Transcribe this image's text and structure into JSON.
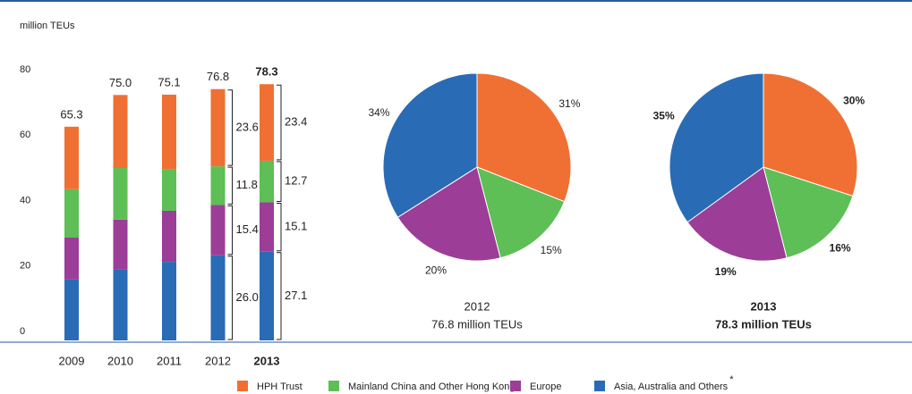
{
  "chart_data": [
    {
      "type": "stacked-bar",
      "yaxis_label": "million TEUs",
      "categories": [
        "2009",
        "2010",
        "2011",
        "2012",
        "2013"
      ],
      "emphasis": "2013",
      "series": [
        {
          "name": "HPH Trust",
          "color": "#f07033",
          "values": [
            19.1,
            22.3,
            22.9,
            23.6,
            23.4
          ],
          "value_labels": [
            null,
            null,
            null,
            "23.6",
            "23.4"
          ]
        },
        {
          "name": "Mainland China and Other Hong Kong",
          "color": "#5dbf55",
          "values": [
            14.8,
            15.8,
            12.6,
            11.8,
            12.7
          ],
          "value_labels": [
            null,
            null,
            null,
            "11.8",
            "12.7"
          ]
        },
        {
          "name": "Europe",
          "color": "#9c3d97",
          "values": [
            12.8,
            15.3,
            15.6,
            15.4,
            15.1
          ],
          "value_labels": [
            null,
            null,
            null,
            "15.4",
            "15.1"
          ]
        },
        {
          "name": "Asia, Australia and Others",
          "color": "#2a6bb6",
          "values": [
            18.6,
            21.6,
            24.0,
            26.0,
            27.1
          ],
          "value_labels": [
            null,
            null,
            null,
            "26.0",
            "27.1"
          ]
        }
      ],
      "legend_note": "*",
      "totals": {
        "values": [
          65.3,
          75.0,
          75.1,
          76.8,
          78.3
        ],
        "value_labels": [
          "65.3",
          "75.0",
          "75.1",
          "76.8",
          "78.3"
        ]
      },
      "ylim": [
        0,
        80
      ],
      "yticks": [
        0,
        20,
        40,
        60,
        80
      ],
      "grid": false
    },
    {
      "type": "pie",
      "title": "2012",
      "subtitle": "76.8 million TEUs",
      "bold": false,
      "values": [
        31,
        15,
        20,
        34
      ],
      "value_labels": [
        "31%",
        "15%",
        "20%",
        "34%"
      ],
      "colors": [
        "#f07033",
        "#5dbf55",
        "#9c3d97",
        "#2a6bb6"
      ]
    },
    {
      "type": "pie",
      "title": "2013",
      "subtitle": "78.3 million TEUs",
      "bold": true,
      "values": [
        30,
        16,
        19,
        35
      ],
      "value_labels": [
        "30%",
        "16%",
        "19%",
        "35%"
      ],
      "colors": [
        "#f07033",
        "#5dbf55",
        "#9c3d97",
        "#2a6bb6"
      ]
    }
  ]
}
